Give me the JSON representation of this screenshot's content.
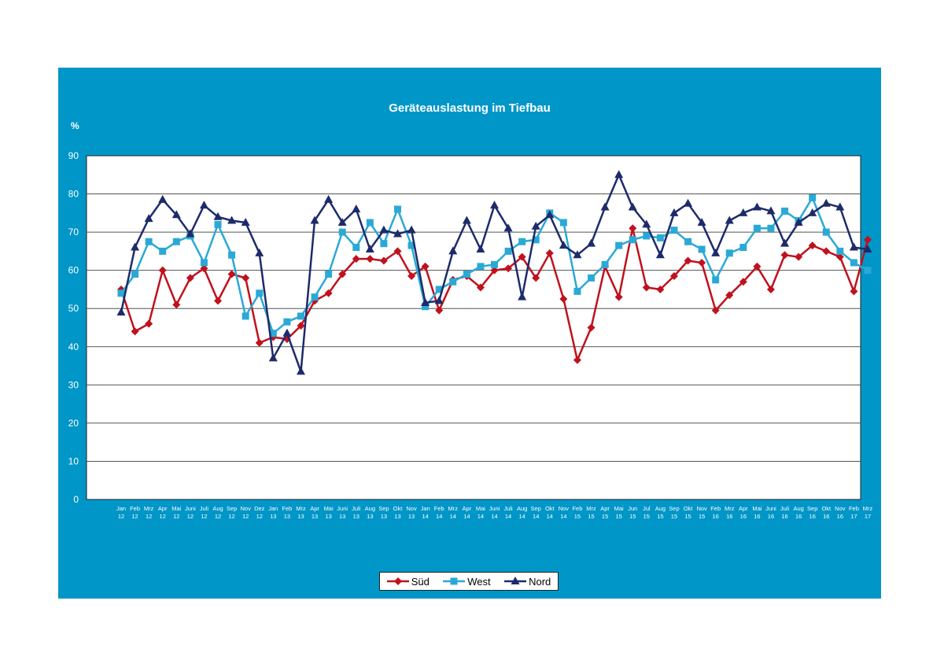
{
  "chart_data": {
    "type": "line",
    "title": "Geräteauslastung im Tiefbau",
    "ylabel": "%",
    "xlabel": "",
    "ylim": [
      0,
      90
    ],
    "yticks": [
      0,
      10,
      20,
      30,
      40,
      50,
      60,
      70,
      80,
      90
    ],
    "grid": true,
    "legend_position": "bottom",
    "categories": [
      [
        "Jan",
        "12"
      ],
      [
        "Feb",
        "12"
      ],
      [
        "Mrz",
        "12"
      ],
      [
        "Apr",
        "12"
      ],
      [
        "Mai",
        "12"
      ],
      [
        "Juni",
        "12"
      ],
      [
        "Juli",
        "12"
      ],
      [
        "Aug",
        "12"
      ],
      [
        "Sep",
        "12"
      ],
      [
        "Nov",
        "12"
      ],
      [
        "Dez",
        "12"
      ],
      [
        "Jan",
        "13"
      ],
      [
        "Feb",
        "13"
      ],
      [
        "Mrz",
        "13"
      ],
      [
        "Apr",
        "13"
      ],
      [
        "Mai",
        "13"
      ],
      [
        "Juni",
        "13"
      ],
      [
        "Juli",
        "13"
      ],
      [
        "Aug",
        "13"
      ],
      [
        "Sep",
        "13"
      ],
      [
        "Okt",
        "13"
      ],
      [
        "Nov",
        "13"
      ],
      [
        "Jan",
        "14"
      ],
      [
        "Feb",
        "14"
      ],
      [
        "Mrz",
        "14"
      ],
      [
        "Apr",
        "14"
      ],
      [
        "Mai",
        "14"
      ],
      [
        "Juni",
        "14"
      ],
      [
        "Juli",
        "14"
      ],
      [
        "Aug",
        "14"
      ],
      [
        "Sep",
        "14"
      ],
      [
        "Okt",
        "14"
      ],
      [
        "Nov",
        "14"
      ],
      [
        "Feb",
        "15"
      ],
      [
        "Mrz",
        "15"
      ],
      [
        "Apr",
        "15"
      ],
      [
        "Mai",
        "15"
      ],
      [
        "Jun",
        "15"
      ],
      [
        "Jul",
        "15"
      ],
      [
        "Aug",
        "15"
      ],
      [
        "Sep",
        "15"
      ],
      [
        "Okt",
        "15"
      ],
      [
        "Nov",
        "15"
      ],
      [
        "Feb",
        "16"
      ],
      [
        "Mrz",
        "16"
      ],
      [
        "Apr",
        "16"
      ],
      [
        "Mai",
        "16"
      ],
      [
        "Juni",
        "16"
      ],
      [
        "Juli",
        "16"
      ],
      [
        "Aug",
        "16"
      ],
      [
        "Sep",
        "16"
      ],
      [
        "Okt",
        "16"
      ],
      [
        "Nov",
        "16"
      ],
      [
        "Feb",
        "17"
      ],
      [
        "Mrz",
        "17"
      ]
    ],
    "series": [
      {
        "name": "Süd",
        "color": "#c0111d",
        "marker": "diamond",
        "values": [
          55,
          44,
          46,
          60,
          51,
          58,
          60.5,
          52,
          59,
          58,
          41,
          42.5,
          42,
          45.5,
          52,
          54,
          59,
          63,
          63,
          62.5,
          65,
          58.5,
          61,
          49.5,
          57.5,
          58.5,
          55.5,
          60,
          60.5,
          63.5,
          58,
          64.5,
          52.5,
          36.5,
          45,
          61,
          53,
          71,
          55.5,
          55,
          58.5,
          62.5,
          62,
          49.5,
          53.5,
          57,
          61,
          55,
          64,
          63.5,
          66.5,
          65,
          63.5,
          54.5,
          68
        ]
      },
      {
        "name": "West",
        "color": "#2aa9d6",
        "marker": "square",
        "values": [
          54,
          59,
          67.5,
          65,
          67.5,
          69,
          62,
          72,
          64,
          48,
          54,
          43.5,
          46.5,
          48,
          53,
          59,
          70,
          66,
          72.5,
          67,
          76,
          66.5,
          50.5,
          55,
          57,
          59,
          61,
          61.5,
          65,
          67.5,
          68,
          75,
          72.5,
          54.5,
          58,
          61.5,
          66.5,
          68,
          69,
          68.5,
          70.5,
          67.5,
          65.5,
          57.5,
          64.5,
          66,
          71,
          71,
          75.5,
          73,
          79,
          70,
          65,
          62,
          60
        ]
      },
      {
        "name": "Nord",
        "color": "#1d2b6b",
        "marker": "triangle",
        "values": [
          49,
          66,
          73.5,
          78.5,
          74.5,
          69.5,
          77,
          74,
          73,
          72.5,
          64.5,
          37,
          43.5,
          33.5,
          73,
          78.5,
          72.5,
          76,
          65.5,
          70.5,
          69.5,
          70.5,
          51.5,
          52,
          65,
          73,
          65.5,
          77,
          71,
          53,
          71.5,
          74.5,
          66.5,
          64,
          67,
          76.5,
          85,
          76.5,
          72,
          64,
          75,
          77.5,
          72.5,
          64.5,
          73,
          75,
          76.5,
          75.5,
          67,
          72.5,
          75,
          77.5,
          76.5,
          66,
          65.5
        ]
      }
    ]
  }
}
